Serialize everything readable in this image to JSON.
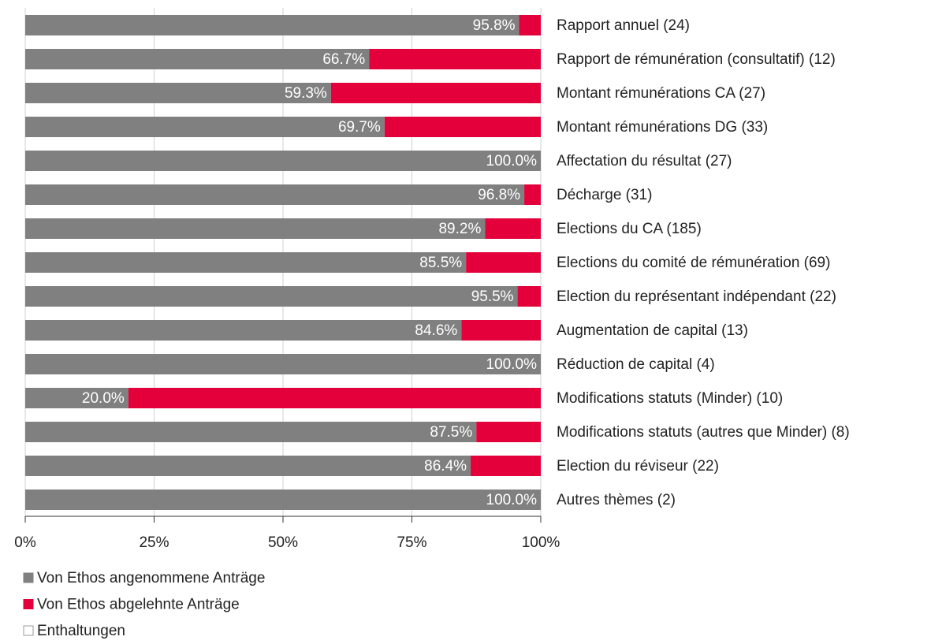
{
  "chart_data": {
    "type": "stacked_barh",
    "categories": [
      "Rapport annuel (24)",
      "Rapport de rémunération (consultatif) (12)",
      "Montant rémunérations CA (27)",
      "Montant rémunérations DG (33)",
      "Affectation du résultat (27)",
      "Décharge (31)",
      "Elections du CA (185)",
      "Elections du comité de rémunération (69)",
      "Election du représentant indépendant (22)",
      "Augmentation de capital (13)",
      "Réduction de capital (4)",
      "Modifications statuts (Minder) (10)",
      "Modifications statuts (autres que Minder) (8)",
      "Election du réviseur (22)",
      "Autres thèmes (2)"
    ],
    "series": [
      {
        "name": "Von Ethos angenommene Anträge",
        "color": "#808080",
        "values": [
          95.8,
          66.7,
          59.3,
          69.7,
          100.0,
          96.8,
          89.2,
          85.5,
          95.5,
          84.6,
          100.0,
          20.0,
          87.5,
          86.4,
          100.0
        ],
        "value_labels": [
          "95.8%",
          "66.7%",
          "59.3%",
          "69.7%",
          "100.0%",
          "96.8%",
          "89.2%",
          "85.5%",
          "95.5%",
          "84.6%",
          "100.0%",
          "20.0%",
          "87.5%",
          "86.4%",
          "100.0%"
        ]
      },
      {
        "name": "Von Ethos abgelehnte Anträge",
        "color": "#e4003a",
        "values": [
          4.2,
          33.3,
          40.7,
          30.3,
          0,
          3.2,
          10.8,
          14.5,
          4.5,
          15.4,
          0,
          80.0,
          12.5,
          13.6,
          0
        ]
      },
      {
        "name": "Enthaltungen",
        "color": "#ffffff",
        "values": [
          0,
          0,
          0,
          0,
          0,
          0,
          0,
          0,
          0,
          0,
          0,
          0,
          0,
          0,
          0
        ]
      }
    ],
    "xlim": [
      0,
      100
    ],
    "xticks": [
      {
        "value": 0,
        "label": "0%"
      },
      {
        "value": 25,
        "label": "25%"
      },
      {
        "value": 50,
        "label": "50%"
      },
      {
        "value": 75,
        "label": "75%"
      },
      {
        "value": 100,
        "label": "100%"
      }
    ],
    "grid": true
  }
}
